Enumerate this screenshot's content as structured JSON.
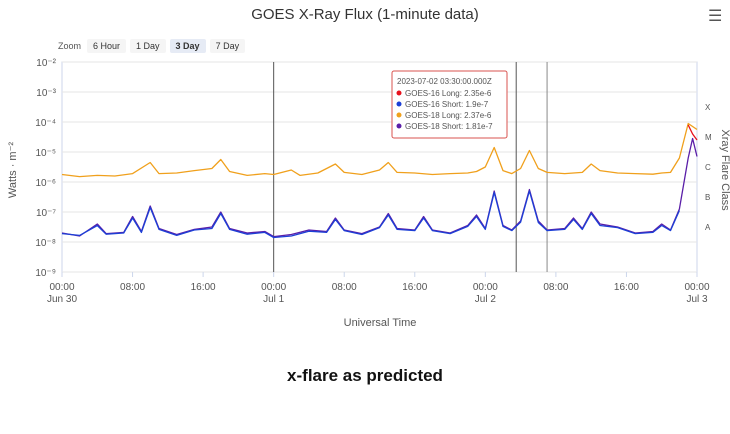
{
  "header": {
    "title": "GOES X-Ray Flux (1-minute data)",
    "menu_icon": "hamburger-menu-icon"
  },
  "zoom": {
    "label": "Zoom",
    "options": [
      "6 Hour",
      "1 Day",
      "3 Day",
      "7 Day"
    ],
    "selected": "3 Day"
  },
  "tooltip": {
    "title": "2023-07-02 03:30:00.000Z",
    "lines": [
      {
        "label": "GOES-16 Long: 2.35e-6",
        "color": "#e8101b"
      },
      {
        "label": "GOES-16 Short: 1.9e-7",
        "color": "#1c3fd6"
      },
      {
        "label": "GOES-18 Long: 2.37e-6",
        "color": "#f0a01c"
      },
      {
        "label": "GOES-18 Short: 1.81e-7",
        "color": "#5a1ea8"
      }
    ]
  },
  "caption": "x-flare as predicted",
  "chart_data": {
    "type": "line",
    "xlabel": "Universal Time",
    "ylabel": "Watts · m⁻²",
    "ylabel_right": "Xray Flare Class",
    "x_range_hours": [
      0,
      72
    ],
    "ylim_log10": [
      -9,
      -2
    ],
    "y_scale": "log",
    "x_ticks": [
      {
        "h": 0,
        "label": "00:00",
        "sub": "Jun 30"
      },
      {
        "h": 8,
        "label": "08:00",
        "sub": ""
      },
      {
        "h": 16,
        "label": "16:00",
        "sub": ""
      },
      {
        "h": 24,
        "label": "00:00",
        "sub": "Jul 1"
      },
      {
        "h": 32,
        "label": "08:00",
        "sub": ""
      },
      {
        "h": 40,
        "label": "16:00",
        "sub": ""
      },
      {
        "h": 48,
        "label": "00:00",
        "sub": "Jul 2"
      },
      {
        "h": 56,
        "label": "08:00",
        "sub": ""
      },
      {
        "h": 64,
        "label": "16:00",
        "sub": ""
      },
      {
        "h": 72,
        "label": "00:00",
        "sub": "Jul 3"
      }
    ],
    "y_ticks": [
      {
        "exp": -2,
        "label": "10⁻²"
      },
      {
        "exp": -3,
        "label": "10⁻³"
      },
      {
        "exp": -4,
        "label": "10⁻⁴"
      },
      {
        "exp": -5,
        "label": "10⁻⁵"
      },
      {
        "exp": -6,
        "label": "10⁻⁶"
      },
      {
        "exp": -7,
        "label": "10⁻⁷"
      },
      {
        "exp": -8,
        "label": "10⁻⁸"
      },
      {
        "exp": -9,
        "label": "10⁻⁹"
      }
    ],
    "flare_classes": [
      {
        "label": "X",
        "exp": -3.5
      },
      {
        "label": "M",
        "exp": -4.5
      },
      {
        "label": "C",
        "exp": -5.5
      },
      {
        "label": "B",
        "exp": -6.5
      },
      {
        "label": "A",
        "exp": -7.5
      }
    ],
    "vertical_markers_hours": [
      24,
      51.5,
      55
    ],
    "series": [
      {
        "name": "GOES-18 Long",
        "color": "#f0a01c",
        "points": [
          [
            0,
            -5.75
          ],
          [
            2,
            -5.82
          ],
          [
            4,
            -5.78
          ],
          [
            6,
            -5.8
          ],
          [
            8,
            -5.72
          ],
          [
            10,
            -5.35
          ],
          [
            11,
            -5.72
          ],
          [
            13,
            -5.7
          ],
          [
            15,
            -5.62
          ],
          [
            17,
            -5.55
          ],
          [
            18,
            -5.25
          ],
          [
            19,
            -5.65
          ],
          [
            21,
            -5.78
          ],
          [
            23,
            -5.72
          ],
          [
            24,
            -5.75
          ],
          [
            26,
            -5.6
          ],
          [
            27,
            -5.78
          ],
          [
            29,
            -5.7
          ],
          [
            31,
            -5.4
          ],
          [
            32,
            -5.68
          ],
          [
            34,
            -5.75
          ],
          [
            36,
            -5.6
          ],
          [
            37,
            -5.35
          ],
          [
            38,
            -5.68
          ],
          [
            40,
            -5.7
          ],
          [
            42,
            -5.75
          ],
          [
            44,
            -5.72
          ],
          [
            46,
            -5.7
          ],
          [
            47,
            -5.65
          ],
          [
            48,
            -5.5
          ],
          [
            49,
            -4.85
          ],
          [
            50,
            -5.62
          ],
          [
            51,
            -5.72
          ],
          [
            52,
            -5.55
          ],
          [
            53,
            -4.95
          ],
          [
            54,
            -5.55
          ],
          [
            55,
            -5.68
          ],
          [
            57,
            -5.72
          ],
          [
            59,
            -5.68
          ],
          [
            60,
            -5.4
          ],
          [
            61,
            -5.62
          ],
          [
            63,
            -5.7
          ],
          [
            65,
            -5.72
          ],
          [
            67,
            -5.74
          ],
          [
            68,
            -5.7
          ],
          [
            69,
            -5.68
          ],
          [
            70,
            -5.2
          ],
          [
            71,
            -4.05
          ],
          [
            72,
            -4.25
          ]
        ]
      },
      {
        "name": "GOES-18 Short",
        "color": "#5a1ea8",
        "points": [
          [
            0,
            -7.7
          ],
          [
            2,
            -7.8
          ],
          [
            4,
            -7.4
          ],
          [
            5,
            -7.72
          ],
          [
            7,
            -7.68
          ],
          [
            8,
            -7.15
          ],
          [
            9,
            -7.65
          ],
          [
            10,
            -6.8
          ],
          [
            11,
            -7.55
          ],
          [
            13,
            -7.75
          ],
          [
            15,
            -7.58
          ],
          [
            17,
            -7.5
          ],
          [
            18,
            -7.0
          ],
          [
            19,
            -7.55
          ],
          [
            21,
            -7.7
          ],
          [
            23,
            -7.65
          ],
          [
            24,
            -7.82
          ],
          [
            26,
            -7.75
          ],
          [
            28,
            -7.6
          ],
          [
            30,
            -7.65
          ],
          [
            31,
            -7.2
          ],
          [
            32,
            -7.6
          ],
          [
            34,
            -7.72
          ],
          [
            36,
            -7.5
          ],
          [
            37,
            -7.05
          ],
          [
            38,
            -7.55
          ],
          [
            40,
            -7.6
          ],
          [
            41,
            -7.15
          ],
          [
            42,
            -7.6
          ],
          [
            44,
            -7.7
          ],
          [
            46,
            -7.45
          ],
          [
            47,
            -7.1
          ],
          [
            48,
            -7.55
          ],
          [
            49,
            -6.3
          ],
          [
            50,
            -7.45
          ],
          [
            51,
            -7.6
          ],
          [
            52,
            -7.3
          ],
          [
            53,
            -6.25
          ],
          [
            54,
            -7.3
          ],
          [
            55,
            -7.6
          ],
          [
            57,
            -7.55
          ],
          [
            58,
            -7.2
          ],
          [
            59,
            -7.55
          ],
          [
            60,
            -7.0
          ],
          [
            61,
            -7.4
          ],
          [
            63,
            -7.5
          ],
          [
            65,
            -7.7
          ],
          [
            67,
            -7.65
          ],
          [
            68,
            -7.4
          ],
          [
            69,
            -7.6
          ],
          [
            70,
            -6.9
          ],
          [
            71,
            -5.2
          ],
          [
            71.5,
            -4.55
          ],
          [
            72,
            -5.15
          ]
        ]
      },
      {
        "name": "GOES-16 Short",
        "color": "#1c3fd6",
        "points": [
          [
            0,
            -7.72
          ],
          [
            2,
            -7.78
          ],
          [
            4,
            -7.45
          ],
          [
            5,
            -7.74
          ],
          [
            7,
            -7.7
          ],
          [
            8,
            -7.2
          ],
          [
            9,
            -7.68
          ],
          [
            10,
            -6.85
          ],
          [
            11,
            -7.58
          ],
          [
            13,
            -7.78
          ],
          [
            15,
            -7.6
          ],
          [
            17,
            -7.55
          ],
          [
            18,
            -7.05
          ],
          [
            19,
            -7.58
          ],
          [
            21,
            -7.74
          ],
          [
            23,
            -7.68
          ],
          [
            24,
            -7.85
          ],
          [
            26,
            -7.8
          ],
          [
            28,
            -7.64
          ],
          [
            30,
            -7.68
          ],
          [
            31,
            -7.25
          ],
          [
            32,
            -7.62
          ],
          [
            34,
            -7.75
          ],
          [
            36,
            -7.52
          ],
          [
            37,
            -7.1
          ],
          [
            38,
            -7.58
          ],
          [
            40,
            -7.62
          ],
          [
            41,
            -7.2
          ],
          [
            42,
            -7.62
          ],
          [
            44,
            -7.72
          ],
          [
            46,
            -7.48
          ],
          [
            47,
            -7.15
          ],
          [
            48,
            -7.58
          ],
          [
            49,
            -6.35
          ],
          [
            50,
            -7.48
          ],
          [
            51,
            -7.62
          ],
          [
            52,
            -7.34
          ],
          [
            53,
            -6.3
          ],
          [
            54,
            -7.35
          ],
          [
            55,
            -7.62
          ],
          [
            57,
            -7.58
          ],
          [
            58,
            -7.25
          ],
          [
            59,
            -7.58
          ],
          [
            60,
            -7.05
          ],
          [
            61,
            -7.45
          ],
          [
            63,
            -7.52
          ],
          [
            65,
            -7.72
          ],
          [
            67,
            -7.68
          ],
          [
            68,
            -7.45
          ],
          [
            69,
            -7.62
          ],
          [
            70,
            -6.95
          ]
        ]
      },
      {
        "name": "GOES-16 Long",
        "color": "#e8101b",
        "points": [
          [
            71,
            -4.1
          ],
          [
            71.5,
            -4.4
          ],
          [
            72,
            -4.6
          ]
        ]
      }
    ]
  }
}
